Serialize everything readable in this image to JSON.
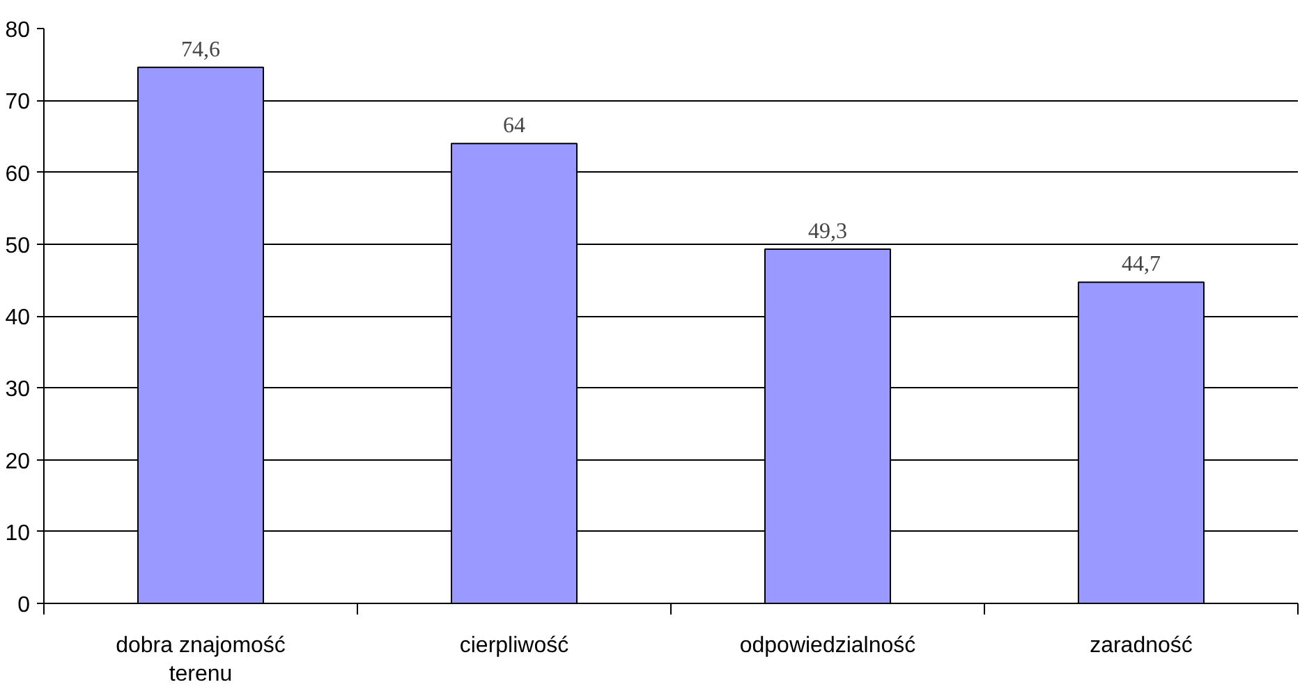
{
  "chart_data": {
    "type": "bar",
    "categories": [
      "dobra znajomość terenu",
      "cierpliwość",
      "odpowiedzialność",
      "zaradność"
    ],
    "values": [
      74.6,
      64,
      49.3,
      44.7
    ],
    "color": "#9999ff",
    "value_labels": [
      "74,6",
      "64",
      "49,3",
      "44,7"
    ],
    "ylim": [
      0,
      80
    ],
    "yticks": [
      0,
      10,
      20,
      30,
      40,
      50,
      60,
      70,
      80
    ],
    "grid": "y"
  }
}
